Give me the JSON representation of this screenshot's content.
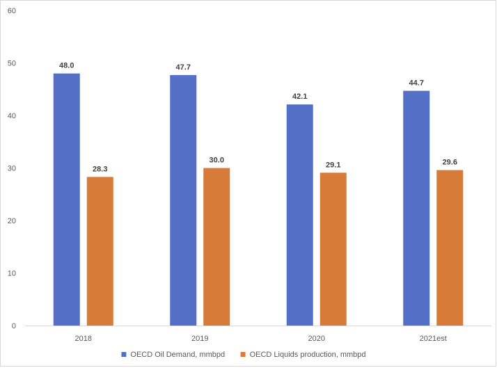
{
  "chart_data": {
    "type": "bar",
    "title": "",
    "xlabel": "",
    "ylabel": "",
    "ylim": [
      0,
      60
    ],
    "yticks": [
      0,
      10,
      20,
      30,
      40,
      50,
      60
    ],
    "categories": [
      "2018",
      "2019",
      "2020",
      "2021est"
    ],
    "series": [
      {
        "name": "OECD Oil Demand, mmbpd",
        "values": [
          48.0,
          47.7,
          42.1,
          44.7
        ],
        "color": "#5470c6",
        "labels": [
          "48.0",
          "47.7",
          "42.1",
          "44.7"
        ]
      },
      {
        "name": "OECD Liquids production, mmbpd",
        "values": [
          28.3,
          30.0,
          29.1,
          29.6
        ],
        "color": "#d77b39",
        "labels": [
          "28.3",
          "30.0",
          "29.1",
          "29.6"
        ]
      }
    ],
    "grid": false,
    "legend": "bottom"
  }
}
